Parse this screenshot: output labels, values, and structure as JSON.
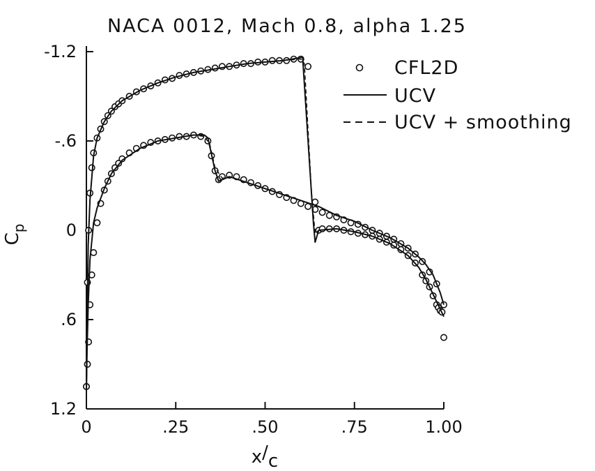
{
  "chart_data": {
    "type": "line",
    "title": "NACA 0012, Mach 0.8, alpha 1.25",
    "xlabel": "x/c",
    "xlabel_parts": [
      "x",
      "/",
      "c"
    ],
    "ylabel": "Cp",
    "ylabel_parts": [
      "C",
      "p"
    ],
    "xlim": [
      0,
      1
    ],
    "ylim": [
      1.2,
      -1.2
    ],
    "y_inverted": true,
    "grid": false,
    "legend_position": "top-right",
    "x_ticks": [
      0,
      0.25,
      0.5,
      0.75,
      1.0
    ],
    "x_tick_labels": [
      "0",
      ".25",
      ".50",
      ".75",
      "1.00"
    ],
    "y_ticks": [
      -1.2,
      -0.6,
      0,
      0.6,
      1.2
    ],
    "y_tick_labels": [
      "-1.2",
      "-.6",
      "0",
      ".6",
      "1.2"
    ],
    "series": [
      {
        "name": "CFL2D",
        "style": "markers",
        "upper": {
          "x": [
            0.0,
            0.003,
            0.006,
            0.01,
            0.015,
            0.02,
            0.03,
            0.04,
            0.05,
            0.06,
            0.07,
            0.08,
            0.09,
            0.1,
            0.12,
            0.14,
            0.16,
            0.18,
            0.2,
            0.22,
            0.24,
            0.26,
            0.28,
            0.3,
            0.32,
            0.34,
            0.36,
            0.38,
            0.4,
            0.42,
            0.44,
            0.46,
            0.48,
            0.5,
            0.52,
            0.54,
            0.56,
            0.58,
            0.6,
            0.62,
            0.64,
            0.65,
            0.66,
            0.68,
            0.7,
            0.72,
            0.74,
            0.76,
            0.78,
            0.8,
            0.82,
            0.84,
            0.86,
            0.88,
            0.9,
            0.92,
            0.94,
            0.95,
            0.96,
            0.97,
            0.98,
            0.985,
            0.99,
            0.995,
            1.0
          ],
          "y": [
            1.05,
            0.35,
            0.0,
            -0.25,
            -0.42,
            -0.52,
            -0.62,
            -0.68,
            -0.73,
            -0.77,
            -0.8,
            -0.83,
            -0.85,
            -0.87,
            -0.9,
            -0.93,
            -0.95,
            -0.97,
            -0.99,
            -1.01,
            -1.02,
            -1.04,
            -1.05,
            -1.06,
            -1.07,
            -1.08,
            -1.09,
            -1.1,
            -1.1,
            -1.11,
            -1.12,
            -1.12,
            -1.13,
            -1.13,
            -1.14,
            -1.14,
            -1.14,
            -1.15,
            -1.15,
            -1.1,
            -0.19,
            0.0,
            -0.01,
            -0.01,
            -0.01,
            0.0,
            0.01,
            0.02,
            0.03,
            0.04,
            0.06,
            0.08,
            0.1,
            0.13,
            0.17,
            0.22,
            0.3,
            0.34,
            0.38,
            0.44,
            0.5,
            0.52,
            0.54,
            0.55,
            0.72
          ]
        },
        "lower": {
          "x": [
            0.0,
            0.003,
            0.006,
            0.01,
            0.015,
            0.02,
            0.03,
            0.04,
            0.05,
            0.06,
            0.07,
            0.08,
            0.09,
            0.1,
            0.12,
            0.14,
            0.16,
            0.18,
            0.2,
            0.22,
            0.24,
            0.26,
            0.28,
            0.3,
            0.32,
            0.34,
            0.35,
            0.36,
            0.37,
            0.38,
            0.4,
            0.42,
            0.44,
            0.46,
            0.48,
            0.5,
            0.52,
            0.54,
            0.56,
            0.58,
            0.6,
            0.62,
            0.64,
            0.66,
            0.68,
            0.7,
            0.72,
            0.74,
            0.76,
            0.78,
            0.8,
            0.82,
            0.84,
            0.86,
            0.88,
            0.9,
            0.92,
            0.94,
            0.96,
            0.98,
            1.0
          ],
          "y": [
            1.05,
            0.9,
            0.75,
            0.5,
            0.3,
            0.15,
            -0.05,
            -0.18,
            -0.27,
            -0.33,
            -0.38,
            -0.42,
            -0.45,
            -0.48,
            -0.52,
            -0.55,
            -0.57,
            -0.59,
            -0.6,
            -0.61,
            -0.62,
            -0.63,
            -0.63,
            -0.64,
            -0.63,
            -0.6,
            -0.5,
            -0.4,
            -0.34,
            -0.36,
            -0.37,
            -0.36,
            -0.34,
            -0.32,
            -0.3,
            -0.28,
            -0.26,
            -0.24,
            -0.22,
            -0.2,
            -0.18,
            -0.16,
            -0.14,
            -0.12,
            -0.1,
            -0.09,
            -0.07,
            -0.05,
            -0.04,
            -0.02,
            0.0,
            0.02,
            0.04,
            0.06,
            0.09,
            0.12,
            0.16,
            0.21,
            0.28,
            0.36,
            0.5
          ]
        }
      },
      {
        "name": "UCV",
        "style": "solid",
        "upper": {
          "x": [
            0.0,
            0.002,
            0.005,
            0.01,
            0.02,
            0.03,
            0.05,
            0.07,
            0.1,
            0.15,
            0.2,
            0.25,
            0.3,
            0.35,
            0.4,
            0.45,
            0.5,
            0.55,
            0.6,
            0.605,
            0.635,
            0.64,
            0.65,
            0.7,
            0.75,
            0.8,
            0.85,
            0.9,
            0.93,
            0.95,
            0.97,
            0.98,
            0.99,
            1.0
          ],
          "y": [
            1.08,
            0.6,
            0.1,
            -0.2,
            -0.5,
            -0.62,
            -0.73,
            -0.8,
            -0.87,
            -0.94,
            -0.99,
            -1.03,
            -1.06,
            -1.08,
            -1.1,
            -1.12,
            -1.13,
            -1.14,
            -1.16,
            -1.16,
            -0.05,
            0.08,
            0.0,
            -0.01,
            0.01,
            0.04,
            0.09,
            0.17,
            0.25,
            0.33,
            0.43,
            0.48,
            0.53,
            0.58
          ]
        },
        "lower": {
          "x": [
            0.0,
            0.002,
            0.005,
            0.01,
            0.02,
            0.03,
            0.05,
            0.07,
            0.1,
            0.15,
            0.2,
            0.25,
            0.3,
            0.33,
            0.34,
            0.36,
            0.37,
            0.4,
            0.45,
            0.5,
            0.55,
            0.6,
            0.65,
            0.7,
            0.75,
            0.8,
            0.85,
            0.9,
            0.93,
            0.95,
            0.97,
            0.99,
            1.0
          ],
          "y": [
            1.08,
            0.8,
            0.5,
            0.2,
            -0.05,
            -0.15,
            -0.28,
            -0.38,
            -0.47,
            -0.55,
            -0.6,
            -0.62,
            -0.64,
            -0.64,
            -0.62,
            -0.4,
            -0.33,
            -0.36,
            -0.32,
            -0.28,
            -0.24,
            -0.2,
            -0.16,
            -0.1,
            -0.06,
            0.0,
            0.05,
            0.12,
            0.18,
            0.23,
            0.3,
            0.42,
            0.5
          ]
        }
      },
      {
        "name": "UCV + smoothing",
        "style": "dashed",
        "upper": {
          "x": [
            0.0,
            0.002,
            0.005,
            0.01,
            0.02,
            0.03,
            0.05,
            0.07,
            0.1,
            0.15,
            0.2,
            0.25,
            0.3,
            0.35,
            0.4,
            0.45,
            0.5,
            0.55,
            0.6,
            0.61,
            0.63,
            0.64,
            0.65,
            0.7,
            0.75,
            0.8,
            0.85,
            0.9,
            0.93,
            0.95,
            0.97,
            0.98,
            0.99,
            1.0
          ],
          "y": [
            1.08,
            0.6,
            0.1,
            -0.2,
            -0.5,
            -0.62,
            -0.73,
            -0.8,
            -0.87,
            -0.94,
            -0.99,
            -1.03,
            -1.06,
            -1.08,
            -1.1,
            -1.12,
            -1.13,
            -1.14,
            -1.15,
            -1.12,
            -0.25,
            0.02,
            0.0,
            -0.01,
            0.01,
            0.04,
            0.09,
            0.17,
            0.25,
            0.33,
            0.43,
            0.48,
            0.53,
            0.58
          ]
        },
        "lower": {
          "x": [
            0.0,
            0.002,
            0.005,
            0.01,
            0.02,
            0.03,
            0.05,
            0.07,
            0.1,
            0.15,
            0.2,
            0.25,
            0.3,
            0.33,
            0.345,
            0.36,
            0.38,
            0.4,
            0.45,
            0.5,
            0.55,
            0.6,
            0.65,
            0.7,
            0.75,
            0.8,
            0.85,
            0.9,
            0.93,
            0.95,
            0.97,
            0.99,
            1.0
          ],
          "y": [
            1.08,
            0.8,
            0.5,
            0.2,
            -0.05,
            -0.15,
            -0.28,
            -0.38,
            -0.47,
            -0.55,
            -0.6,
            -0.62,
            -0.64,
            -0.63,
            -0.58,
            -0.42,
            -0.35,
            -0.36,
            -0.32,
            -0.28,
            -0.24,
            -0.2,
            -0.16,
            -0.1,
            -0.06,
            0.0,
            0.05,
            0.12,
            0.18,
            0.23,
            0.3,
            0.42,
            0.5
          ]
        }
      }
    ]
  }
}
